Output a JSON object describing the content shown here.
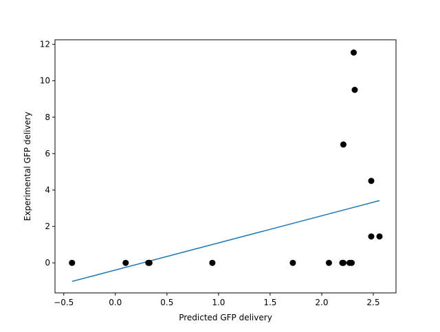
{
  "chart_data": {
    "type": "scatter",
    "title": "",
    "xlabel": "Predicted GFP delivery",
    "ylabel": "Experimental GFP delivery",
    "xlim": [
      -0.585,
      2.72
    ],
    "ylim": [
      -1.65,
      12.25
    ],
    "xticks": [
      -0.5,
      0.0,
      0.5,
      1.0,
      1.5,
      2.0,
      2.5
    ],
    "xtick_labels": [
      "−0.5",
      "0.0",
      "0.5",
      "1.0",
      "1.5",
      "2.0",
      "2.5"
    ],
    "yticks": [
      0,
      2,
      4,
      6,
      8,
      10,
      12
    ],
    "ytick_labels": [
      "0",
      "2",
      "4",
      "6",
      "8",
      "10",
      "12"
    ],
    "grid": false,
    "points": {
      "color": "#000000",
      "x": [
        -0.42,
        0.1,
        0.32,
        0.33,
        0.94,
        1.72,
        2.07,
        2.2,
        2.21,
        2.21,
        2.27,
        2.29,
        2.31,
        2.32,
        2.48,
        2.48,
        2.56
      ],
      "y": [
        0,
        0,
        0,
        0,
        0,
        0,
        0,
        0,
        0,
        6.5,
        0,
        0,
        11.55,
        9.5,
        4.5,
        1.45,
        1.45
      ]
    },
    "fit_line": {
      "color": "#1f77b4",
      "x": [
        -0.42,
        2.56
      ],
      "y": [
        -1.02,
        3.42
      ]
    }
  }
}
